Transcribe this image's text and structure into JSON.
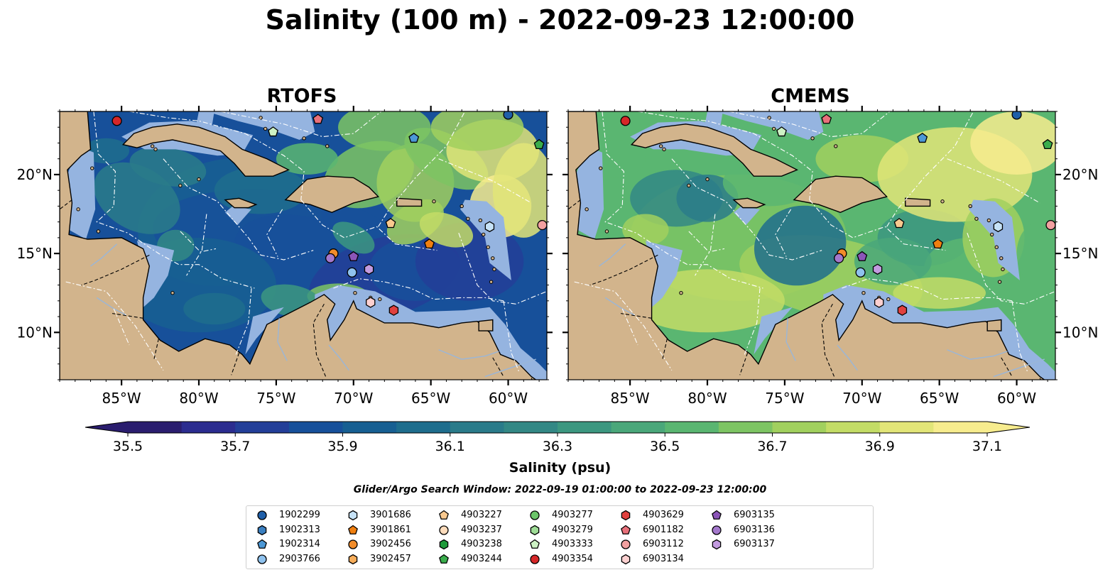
{
  "title": "Salinity (100 m) - 2022-09-23 12:00:00",
  "panels": [
    {
      "title": "RTOFS"
    },
    {
      "title": "CMEMS"
    }
  ],
  "colorbar": {
    "label": "Salinity (psu)",
    "ticks": [
      "35.5",
      "35.7",
      "35.9",
      "36.1",
      "36.3",
      "36.5",
      "36.7",
      "36.9",
      "37.1"
    ],
    "levels": [
      35.5,
      35.6,
      35.7,
      35.8,
      35.9,
      36.0,
      36.1,
      36.2,
      36.3,
      36.4,
      36.5,
      36.6,
      36.7,
      36.8,
      36.9,
      37.0,
      37.1
    ],
    "colors": [
      "#2a1d6e",
      "#2b2c8f",
      "#233e98",
      "#17509a",
      "#175f92",
      "#1e6d8d",
      "#2a7b8a",
      "#338885",
      "#3c9780",
      "#4aa77a",
      "#5ab671",
      "#7dc463",
      "#a1d05e",
      "#c3dc66",
      "#e2e578",
      "#f7ec8e"
    ],
    "extend": "both"
  },
  "search_window": "Glider/Argo Search Window: 2022-09-19 01:00:00 to 2022-09-23 12:00:00",
  "map": {
    "lon_range": [
      -89,
      -57.5
    ],
    "lat_range": [
      7,
      24
    ],
    "xticks": [
      "85°W",
      "80°W",
      "75°W",
      "70°W",
      "65°W",
      "60°W"
    ],
    "xtick_values": [
      -85,
      -80,
      -75,
      -70,
      -65,
      -60
    ],
    "yticks": [
      "20°N",
      "15°N",
      "10°N"
    ],
    "ytick_values": [
      20,
      15,
      10
    ],
    "colors": {
      "land": "#d2b48c",
      "shallow": "#95b4e0",
      "deep": "#2a1d6e",
      "eez": "#ffffff"
    }
  },
  "legend": [
    {
      "id": "1902299",
      "marker": "circle",
      "color": "#1f5fa8"
    },
    {
      "id": "1902313",
      "marker": "hexagon",
      "color": "#3a7fc0"
    },
    {
      "id": "1902314",
      "marker": "pentagon",
      "color": "#4c98d6"
    },
    {
      "id": "2903766",
      "marker": "circle",
      "color": "#8fc2ee"
    },
    {
      "id": "3901686",
      "marker": "hexagon",
      "color": "#c6e2f7"
    },
    {
      "id": "3901861",
      "marker": "pentagon",
      "color": "#f07f10"
    },
    {
      "id": "3902456",
      "marker": "circle",
      "color": "#f28c2a"
    },
    {
      "id": "3902457",
      "marker": "hexagon",
      "color": "#f7ad5a"
    },
    {
      "id": "4903227",
      "marker": "pentagon",
      "color": "#f9c98f"
    },
    {
      "id": "4903237",
      "marker": "circle",
      "color": "#fddcbc"
    },
    {
      "id": "4903238",
      "marker": "hexagon",
      "color": "#1f9a3a"
    },
    {
      "id": "4903244",
      "marker": "pentagon",
      "color": "#3aad4c"
    },
    {
      "id": "4903277",
      "marker": "circle",
      "color": "#6cc56a"
    },
    {
      "id": "4903279",
      "marker": "hexagon",
      "color": "#9edc96"
    },
    {
      "id": "4903333",
      "marker": "pentagon",
      "color": "#cdf2c4"
    },
    {
      "id": "4903354",
      "marker": "circle",
      "color": "#d62728"
    },
    {
      "id": "4903629",
      "marker": "hexagon",
      "color": "#e0413f"
    },
    {
      "id": "6901182",
      "marker": "pentagon",
      "color": "#e8707a"
    },
    {
      "id": "6903112",
      "marker": "circle",
      "color": "#f2a0a0"
    },
    {
      "id": "6903134",
      "marker": "hexagon",
      "color": "#fcd0d0"
    },
    {
      "id": "6903135",
      "marker": "pentagon",
      "color": "#8b55b8"
    },
    {
      "id": "6903136",
      "marker": "circle",
      "color": "#a478cc"
    },
    {
      "id": "6903137",
      "marker": "hexagon",
      "color": "#c39be0"
    }
  ],
  "floats": [
    {
      "id": "4903354",
      "lon": -85.3,
      "lat": 23.4
    },
    {
      "id": "6901182",
      "lon": -72.3,
      "lat": 23.5
    },
    {
      "id": "1902299",
      "lon": -60.0,
      "lat": 23.8
    },
    {
      "id": "4903333",
      "lon": -75.2,
      "lat": 22.7
    },
    {
      "id": "1902314",
      "lon": -66.1,
      "lat": 22.3
    },
    {
      "id": "4903244",
      "lon": -58.0,
      "lat": 21.9
    },
    {
      "id": "4903227",
      "lon": -67.6,
      "lat": 16.9
    },
    {
      "id": "3901686",
      "lon": -61.2,
      "lat": 16.7
    },
    {
      "id": "6903112",
      "lon": -57.8,
      "lat": 16.8
    },
    {
      "id": "3901861",
      "lon": -65.1,
      "lat": 15.6
    },
    {
      "id": "3902456",
      "lon": -71.3,
      "lat": 15.0
    },
    {
      "id": "6903135",
      "lon": -70.0,
      "lat": 14.8
    },
    {
      "id": "6903136",
      "lon": -71.5,
      "lat": 14.7
    },
    {
      "id": "2903766",
      "lon": -70.1,
      "lat": 13.8
    },
    {
      "id": "6903137",
      "lon": -69.0,
      "lat": 14.0
    },
    {
      "id": "6903134",
      "lon": -68.9,
      "lat": 11.9
    },
    {
      "id": "4903629",
      "lon": -67.4,
      "lat": 11.4
    }
  ]
}
